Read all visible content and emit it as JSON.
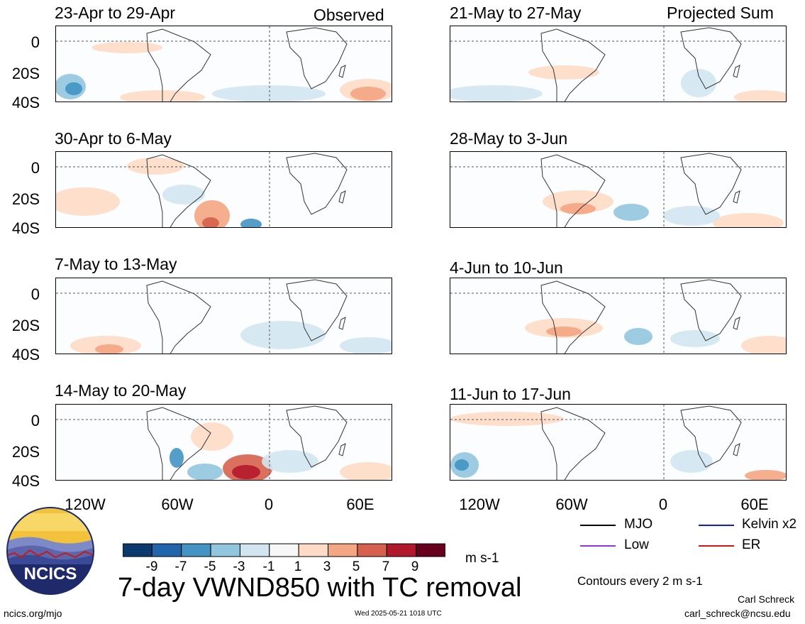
{
  "left_header": "Observed",
  "right_header": "Projected Sum",
  "panels_left": [
    {
      "title": "23-Apr to 29-Apr"
    },
    {
      "title": "30-Apr to 6-May"
    },
    {
      "title": "7-May to 13-May"
    },
    {
      "title": "14-May to 20-May"
    }
  ],
  "panels_right": [
    {
      "title": "21-May to 27-May"
    },
    {
      "title": "28-May to 3-Jun"
    },
    {
      "title": "4-Jun to 10-Jun"
    },
    {
      "title": "11-Jun to 17-Jun"
    }
  ],
  "y_axis": [
    "0",
    "20S",
    "40S"
  ],
  "x_axis": [
    "120W",
    "60W",
    "0",
    "60E"
  ],
  "legend": {
    "mjo": "MJO",
    "kelvin": "Kelvin x2",
    "low": "Low",
    "er": "ER",
    "colors": {
      "mjo": "#000000",
      "kelvin": "#0a1fd1",
      "low": "#9b30e0",
      "er": "#d8150d"
    },
    "contours_note": "Contours every 2 m s-1"
  },
  "colorbar": {
    "labels": [
      "-9",
      "-7",
      "-5",
      "-3",
      "-1",
      "1",
      "3",
      "5",
      "7",
      "9"
    ],
    "colors": [
      "#0d3a6e",
      "#2166ac",
      "#4393c3",
      "#92c5de",
      "#d1e5f0",
      "#f7f7f7",
      "#fddbc7",
      "#f4a582",
      "#d6604d",
      "#b2182b",
      "#67001f"
    ],
    "units": "m s-1"
  },
  "main_title": "7-day VWND850 with TC removal",
  "logo_text": "NCICS",
  "footer": {
    "left": "ncics.org/mjo",
    "center": "Wed 2025-05-21 1018 UTC",
    "author": "Carl Schreck",
    "email": "carl_schreck@ncsu.edu"
  }
}
